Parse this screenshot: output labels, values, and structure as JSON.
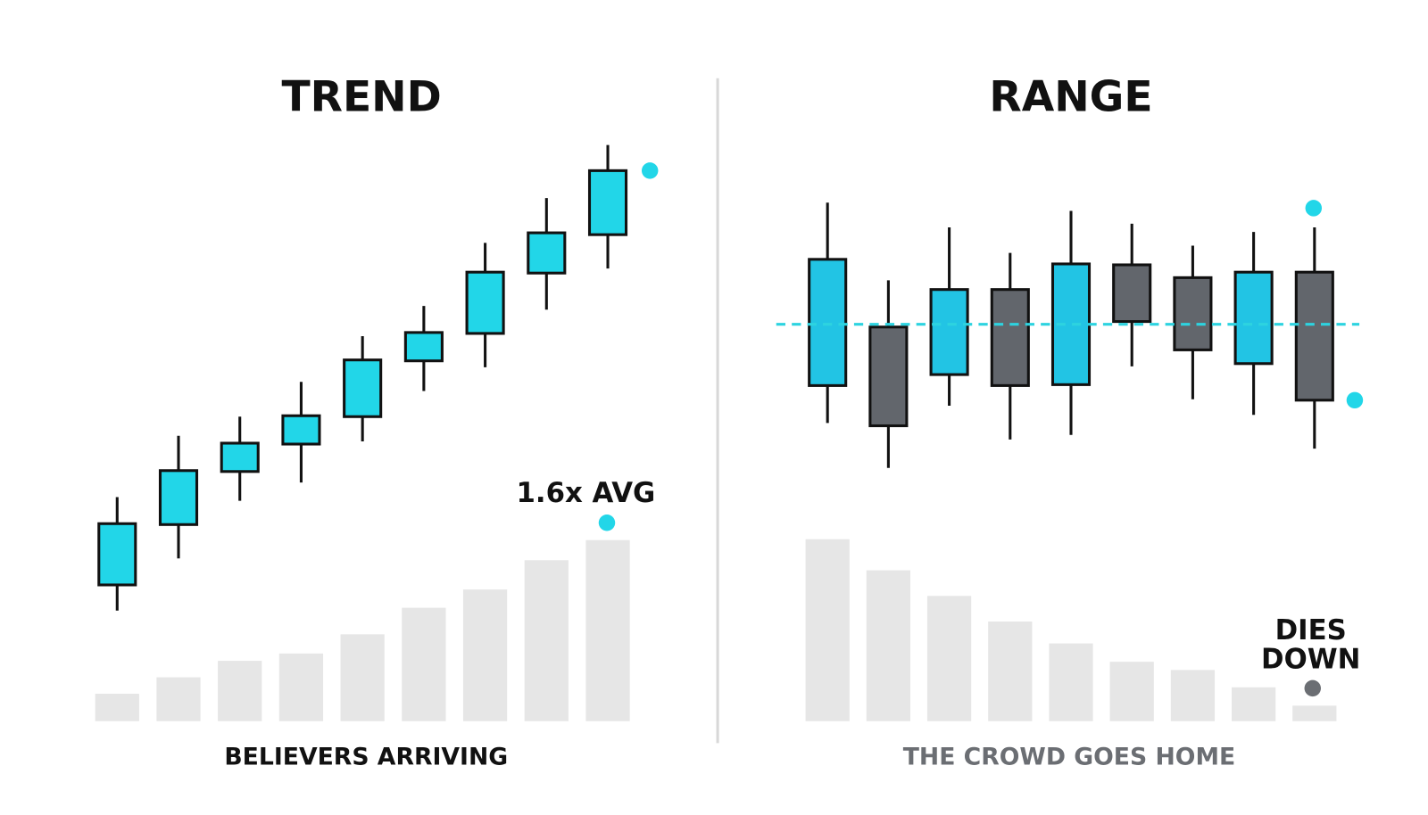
{
  "chart_data": [
    {
      "type": "candlestick",
      "title": "TREND",
      "caption": "BELIEVERS ARRIVING",
      "annotation": "1.6x AVG",
      "up_color": "#22d6e8",
      "down_color": "#62666c",
      "volume_color": "#e6e6e6",
      "ylim": [
        0,
        900
      ],
      "open": [
        261,
        327,
        385,
        415,
        445,
        506,
        536,
        602,
        644
      ],
      "close": [
        328,
        386,
        416,
        446,
        507,
        537,
        603,
        646,
        714
      ],
      "high": [
        357,
        424,
        445,
        483,
        533,
        566,
        635,
        684,
        742
      ],
      "low": [
        233,
        290,
        353,
        373,
        418,
        473,
        499,
        562,
        607
      ],
      "volume": [
        30,
        48,
        66,
        74,
        95,
        124,
        144,
        176,
        198
      ]
    },
    {
      "type": "candlestick",
      "title": "RANGE",
      "caption": "THE CROWD GOES HOME",
      "annotation_lines": [
        "DIES",
        "DOWN"
      ],
      "up_color": "#22c4e4",
      "down_color": "#62666c",
      "volume_color": "#e6e6e6",
      "ylim": [
        0,
        900
      ],
      "hline": 546,
      "hline_color": "#2dd3e0",
      "open": [
        479,
        543,
        491,
        584,
        480,
        611,
        597,
        503,
        603
      ],
      "close": [
        617,
        435,
        584,
        479,
        612,
        549,
        518,
        603,
        463
      ],
      "high": [
        679,
        594,
        652,
        624,
        670,
        656,
        632,
        647,
        652
      ],
      "low": [
        438,
        389,
        457,
        420,
        425,
        500,
        464,
        447,
        410
      ],
      "volume": [
        199,
        165,
        137,
        109,
        85,
        65,
        56,
        37,
        17
      ]
    }
  ]
}
